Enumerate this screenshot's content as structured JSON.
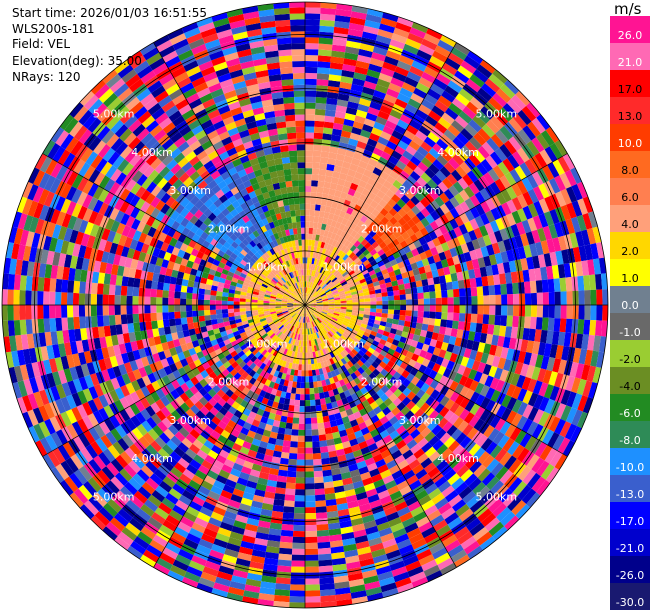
{
  "header": {
    "start_time": "Start time: 2026/01/03 16:51:55",
    "instrument": "WLS200s-181",
    "field": "Field: VEL",
    "elevation": "Elevation(deg): 35.00",
    "nrays": "NRays: 120"
  },
  "colorbar": {
    "unit": "m/s",
    "ticks": [
      "26.0",
      "21.0",
      "17.0",
      "13.0",
      "10.0",
      "8.0",
      "6.0",
      "4.0",
      "2.0",
      "1.0",
      "0.0",
      "-1.0",
      "-2.0",
      "-4.0",
      "-6.0",
      "-8.0",
      "-10.0",
      "-13.0",
      "-17.0",
      "-21.0",
      "-26.0",
      "-30.0"
    ],
    "colors": [
      "#ff1493",
      "#ff69b4",
      "#ff0000",
      "#ff2a2a",
      "#ff3c00",
      "#ff6a20",
      "#ff7f50",
      "#ffa07a",
      "#ffd700",
      "#ffff00",
      "#708090",
      "#696969",
      "#9acd32",
      "#6b8e23",
      "#228b22",
      "#2e8b57",
      "#1e90ff",
      "#3a5fcd",
      "#0000ff",
      "#0000cd",
      "#00008b",
      "#191970"
    ]
  },
  "range_rings": {
    "labels": [
      "1.00km",
      "2.00km",
      "3.00km",
      "4.00km",
      "5.00km"
    ]
  },
  "chart_data": {
    "type": "heatmap",
    "projection": "polar PPI",
    "title": "",
    "field": "VEL",
    "units": "m/s",
    "nrays": 120,
    "elevation_deg": 35.0,
    "max_range_km": 5.6,
    "ring_spacing_km": 1.0,
    "clim": [
      -30.0,
      26.0
    ],
    "colorbar_ticks": [
      26.0,
      21.0,
      17.0,
      13.0,
      10.0,
      8.0,
      6.0,
      4.0,
      2.0,
      1.0,
      0.0,
      -1.0,
      -2.0,
      -4.0,
      -6.0,
      -8.0,
      -10.0,
      -13.0,
      -17.0,
      -21.0,
      -26.0,
      -30.0
    ],
    "coherent_regions": [
      {
        "description": "near-field",
        "range_km": [
          0.0,
          1.2
        ],
        "value_ms": 2.0
      },
      {
        "description": "N to NE sector",
        "azimuth_deg": [
          0,
          40
        ],
        "range_km": [
          1.2,
          3.0
        ],
        "value_ms": 3.0
      },
      {
        "description": "NE sector",
        "azimuth_deg": [
          40,
          60
        ],
        "range_km": [
          1.8,
          2.6
        ],
        "value_ms": 8.0
      },
      {
        "description": "NNW sector",
        "azimuth_deg": [
          335,
          360
        ],
        "range_km": [
          1.2,
          2.9
        ],
        "value_ms": -6.0
      },
      {
        "description": "NW sector",
        "azimuth_deg": [
          300,
          335
        ],
        "range_km": [
          1.2,
          3.0
        ],
        "value_ms": -13.0
      }
    ],
    "far_field": "noise (random velocities across full colour range)"
  }
}
